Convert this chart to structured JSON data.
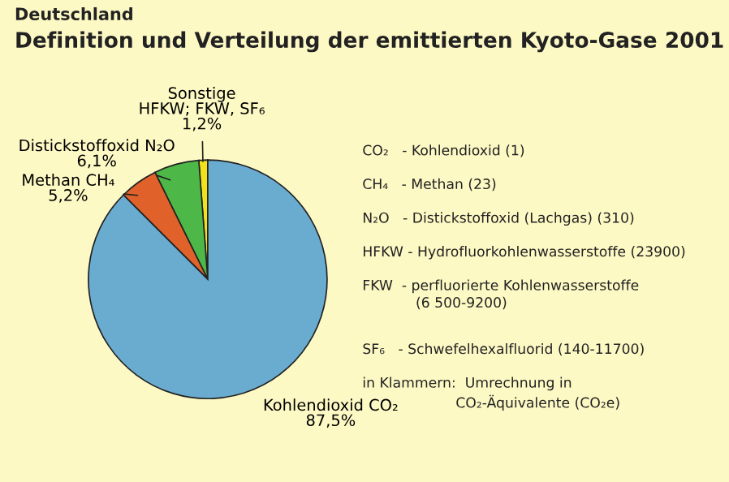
{
  "chart_data": {
    "type": "pie",
    "title": "Definition und Verteilung der emittierten Kyoto-Gase 2001",
    "subtitle": "Deutschland",
    "categories": [
      "Sonstige\nHFKW; FKW, SF₆",
      "Distickstoffoxid N₂O",
      "Methan CH₄",
      "Kohlendioxid CO₂"
    ],
    "values": [
      1.2,
      6.1,
      5.2,
      87.5
    ],
    "value_labels": [
      "1,2%",
      "6,1%",
      "5,2%",
      "87,5%"
    ],
    "colors": [
      "#f2e21c",
      "#4db848",
      "#e0622a",
      "#6aaccf"
    ],
    "annotations": [
      "CO₂   - Kohlendioxid (1)",
      "CH₄   - Methan (23)",
      "N₂O   - Distickstoffoxid (Lachgas) (310)",
      "HFKW - Hydrofluorkohlenwasserstoffe (23900)",
      "FKW  - perfluorierte Kohlenwasserstoffe\n            (6 500-9200)",
      "SF₆   - Schwefelhexalfluorid (140-11700)",
      "in Klammern:  Umrechnung in\n                     CO₂-Äquivalente (CO₂e)"
    ]
  }
}
